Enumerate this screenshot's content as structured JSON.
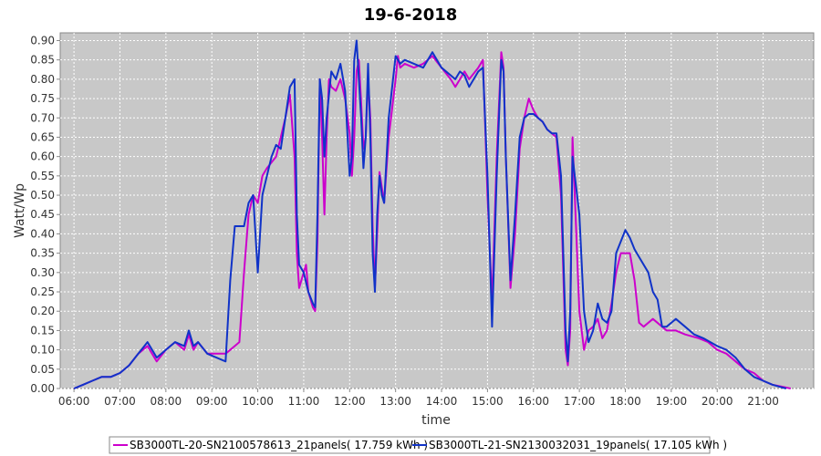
{
  "chart_data": {
    "type": "line",
    "title": "19-6-2018",
    "xlabel": "time",
    "ylabel": "Watt/Wp",
    "xlim": [
      5.7,
      22.1
    ],
    "ylim": [
      0,
      0.92
    ],
    "x_ticks": [
      "06:00",
      "07:00",
      "08:00",
      "09:00",
      "10:00",
      "11:00",
      "12:00",
      "13:00",
      "14:00",
      "15:00",
      "16:00",
      "17:00",
      "18:00",
      "19:00",
      "20:00",
      "21:00"
    ],
    "y_ticks": [
      "0.00",
      "0.05",
      "0.10",
      "0.15",
      "0.20",
      "0.25",
      "0.30",
      "0.35",
      "0.40",
      "0.45",
      "0.50",
      "0.55",
      "0.60",
      "0.65",
      "0.70",
      "0.75",
      "0.80",
      "0.85",
      "0.90"
    ],
    "grid": true,
    "legend": "bottom",
    "background": "#c8c8c8",
    "series": [
      {
        "name": "SB3000TL-20-SN2100578613_21panels( 17.759 kWh )",
        "color": "#cc00cc",
        "points": [
          [
            6.0,
            0.0
          ],
          [
            6.2,
            0.01
          ],
          [
            6.4,
            0.02
          ],
          [
            6.6,
            0.03
          ],
          [
            6.8,
            0.03
          ],
          [
            7.0,
            0.04
          ],
          [
            7.2,
            0.06
          ],
          [
            7.4,
            0.09
          ],
          [
            7.6,
            0.11
          ],
          [
            7.8,
            0.07
          ],
          [
            8.0,
            0.1
          ],
          [
            8.2,
            0.12
          ],
          [
            8.4,
            0.1
          ],
          [
            8.5,
            0.14
          ],
          [
            8.6,
            0.1
          ],
          [
            8.7,
            0.12
          ],
          [
            8.9,
            0.09
          ],
          [
            9.1,
            0.09
          ],
          [
            9.3,
            0.09
          ],
          [
            9.5,
            0.11
          ],
          [
            9.6,
            0.12
          ],
          [
            9.7,
            0.3
          ],
          [
            9.8,
            0.45
          ],
          [
            9.9,
            0.5
          ],
          [
            10.0,
            0.48
          ],
          [
            10.1,
            0.55
          ],
          [
            10.2,
            0.57
          ],
          [
            10.4,
            0.6
          ],
          [
            10.5,
            0.65
          ],
          [
            10.6,
            0.7
          ],
          [
            10.7,
            0.76
          ],
          [
            10.8,
            0.6
          ],
          [
            10.85,
            0.35
          ],
          [
            10.9,
            0.26
          ],
          [
            11.0,
            0.3
          ],
          [
            11.05,
            0.32
          ],
          [
            11.1,
            0.25
          ],
          [
            11.2,
            0.21
          ],
          [
            11.25,
            0.2
          ],
          [
            11.3,
            0.38
          ],
          [
            11.35,
            0.8
          ],
          [
            11.4,
            0.65
          ],
          [
            11.45,
            0.45
          ],
          [
            11.5,
            0.65
          ],
          [
            11.55,
            0.8
          ],
          [
            11.6,
            0.78
          ],
          [
            11.7,
            0.77
          ],
          [
            11.8,
            0.8
          ],
          [
            11.9,
            0.75
          ],
          [
            12.0,
            0.66
          ],
          [
            12.05,
            0.55
          ],
          [
            12.1,
            0.65
          ],
          [
            12.15,
            0.82
          ],
          [
            12.2,
            0.85
          ],
          [
            12.25,
            0.74
          ],
          [
            12.3,
            0.62
          ],
          [
            12.35,
            0.65
          ],
          [
            12.4,
            0.8
          ],
          [
            12.45,
            0.7
          ],
          [
            12.5,
            0.42
          ],
          [
            12.55,
            0.26
          ],
          [
            12.6,
            0.4
          ],
          [
            12.65,
            0.56
          ],
          [
            12.7,
            0.52
          ],
          [
            12.75,
            0.48
          ],
          [
            12.85,
            0.65
          ],
          [
            13.0,
            0.8
          ],
          [
            13.05,
            0.86
          ],
          [
            13.1,
            0.83
          ],
          [
            13.2,
            0.84
          ],
          [
            13.4,
            0.83
          ],
          [
            13.6,
            0.84
          ],
          [
            13.8,
            0.86
          ],
          [
            14.0,
            0.83
          ],
          [
            14.2,
            0.8
          ],
          [
            14.3,
            0.78
          ],
          [
            14.4,
            0.8
          ],
          [
            14.5,
            0.82
          ],
          [
            14.6,
            0.8
          ],
          [
            14.8,
            0.83
          ],
          [
            14.9,
            0.85
          ],
          [
            15.0,
            0.5
          ],
          [
            15.1,
            0.22
          ],
          [
            15.2,
            0.6
          ],
          [
            15.3,
            0.87
          ],
          [
            15.35,
            0.83
          ],
          [
            15.4,
            0.6
          ],
          [
            15.5,
            0.26
          ],
          [
            15.6,
            0.4
          ],
          [
            15.7,
            0.62
          ],
          [
            15.8,
            0.7
          ],
          [
            15.9,
            0.75
          ],
          [
            16.0,
            0.72
          ],
          [
            16.1,
            0.7
          ],
          [
            16.2,
            0.69
          ],
          [
            16.3,
            0.67
          ],
          [
            16.4,
            0.66
          ],
          [
            16.5,
            0.65
          ],
          [
            16.6,
            0.5
          ],
          [
            16.7,
            0.1
          ],
          [
            16.75,
            0.06
          ],
          [
            16.8,
            0.15
          ],
          [
            16.85,
            0.65
          ],
          [
            16.9,
            0.5
          ],
          [
            17.0,
            0.2
          ],
          [
            17.1,
            0.1
          ],
          [
            17.2,
            0.15
          ],
          [
            17.3,
            0.16
          ],
          [
            17.4,
            0.18
          ],
          [
            17.5,
            0.13
          ],
          [
            17.6,
            0.15
          ],
          [
            17.7,
            0.22
          ],
          [
            17.8,
            0.3
          ],
          [
            17.9,
            0.35
          ],
          [
            18.1,
            0.35
          ],
          [
            18.2,
            0.28
          ],
          [
            18.3,
            0.17
          ],
          [
            18.4,
            0.16
          ],
          [
            18.6,
            0.18
          ],
          [
            18.8,
            0.16
          ],
          [
            18.9,
            0.15
          ],
          [
            19.1,
            0.15
          ],
          [
            19.3,
            0.14
          ],
          [
            19.6,
            0.13
          ],
          [
            19.8,
            0.12
          ],
          [
            20.0,
            0.1
          ],
          [
            20.2,
            0.09
          ],
          [
            20.4,
            0.07
          ],
          [
            20.6,
            0.05
          ],
          [
            20.8,
            0.04
          ],
          [
            21.0,
            0.02
          ],
          [
            21.2,
            0.01
          ],
          [
            21.4,
            0.005
          ],
          [
            21.6,
            0.0
          ]
        ]
      },
      {
        "name": "SB3000TL-21-SN2130032031_19panels( 17.105 kWh )",
        "color": "#1033c8",
        "points": [
          [
            6.0,
            0.0
          ],
          [
            6.2,
            0.01
          ],
          [
            6.4,
            0.02
          ],
          [
            6.6,
            0.03
          ],
          [
            6.8,
            0.03
          ],
          [
            7.0,
            0.04
          ],
          [
            7.2,
            0.06
          ],
          [
            7.4,
            0.09
          ],
          [
            7.6,
            0.12
          ],
          [
            7.8,
            0.08
          ],
          [
            8.0,
            0.1
          ],
          [
            8.2,
            0.12
          ],
          [
            8.4,
            0.11
          ],
          [
            8.5,
            0.15
          ],
          [
            8.6,
            0.11
          ],
          [
            8.7,
            0.12
          ],
          [
            8.9,
            0.09
          ],
          [
            9.1,
            0.08
          ],
          [
            9.3,
            0.07
          ],
          [
            9.4,
            0.28
          ],
          [
            9.5,
            0.42
          ],
          [
            9.7,
            0.42
          ],
          [
            9.8,
            0.48
          ],
          [
            9.9,
            0.5
          ],
          [
            10.0,
            0.3
          ],
          [
            10.1,
            0.5
          ],
          [
            10.2,
            0.55
          ],
          [
            10.3,
            0.6
          ],
          [
            10.4,
            0.63
          ],
          [
            10.5,
            0.62
          ],
          [
            10.6,
            0.7
          ],
          [
            10.7,
            0.78
          ],
          [
            10.8,
            0.8
          ],
          [
            10.85,
            0.45
          ],
          [
            10.9,
            0.32
          ],
          [
            11.0,
            0.3
          ],
          [
            11.1,
            0.25
          ],
          [
            11.2,
            0.22
          ],
          [
            11.25,
            0.21
          ],
          [
            11.3,
            0.45
          ],
          [
            11.35,
            0.8
          ],
          [
            11.4,
            0.75
          ],
          [
            11.45,
            0.6
          ],
          [
            11.5,
            0.7
          ],
          [
            11.6,
            0.82
          ],
          [
            11.7,
            0.8
          ],
          [
            11.8,
            0.84
          ],
          [
            11.9,
            0.77
          ],
          [
            12.0,
            0.55
          ],
          [
            12.05,
            0.6
          ],
          [
            12.1,
            0.85
          ],
          [
            12.15,
            0.9
          ],
          [
            12.2,
            0.8
          ],
          [
            12.25,
            0.7
          ],
          [
            12.3,
            0.57
          ],
          [
            12.35,
            0.65
          ],
          [
            12.4,
            0.84
          ],
          [
            12.45,
            0.65
          ],
          [
            12.5,
            0.35
          ],
          [
            12.55,
            0.25
          ],
          [
            12.6,
            0.45
          ],
          [
            12.65,
            0.55
          ],
          [
            12.7,
            0.5
          ],
          [
            12.75,
            0.48
          ],
          [
            12.85,
            0.7
          ],
          [
            13.0,
            0.86
          ],
          [
            13.1,
            0.84
          ],
          [
            13.2,
            0.85
          ],
          [
            13.4,
            0.84
          ],
          [
            13.6,
            0.83
          ],
          [
            13.8,
            0.87
          ],
          [
            14.0,
            0.83
          ],
          [
            14.2,
            0.81
          ],
          [
            14.3,
            0.8
          ],
          [
            14.4,
            0.82
          ],
          [
            14.5,
            0.81
          ],
          [
            14.6,
            0.78
          ],
          [
            14.8,
            0.82
          ],
          [
            14.9,
            0.83
          ],
          [
            15.0,
            0.55
          ],
          [
            15.1,
            0.16
          ],
          [
            15.2,
            0.55
          ],
          [
            15.3,
            0.85
          ],
          [
            15.35,
            0.82
          ],
          [
            15.4,
            0.6
          ],
          [
            15.5,
            0.28
          ],
          [
            15.6,
            0.45
          ],
          [
            15.7,
            0.65
          ],
          [
            15.8,
            0.7
          ],
          [
            15.9,
            0.71
          ],
          [
            16.0,
            0.71
          ],
          [
            16.1,
            0.7
          ],
          [
            16.2,
            0.69
          ],
          [
            16.3,
            0.67
          ],
          [
            16.4,
            0.66
          ],
          [
            16.5,
            0.66
          ],
          [
            16.6,
            0.55
          ],
          [
            16.7,
            0.15
          ],
          [
            16.75,
            0.07
          ],
          [
            16.8,
            0.2
          ],
          [
            16.85,
            0.6
          ],
          [
            16.9,
            0.55
          ],
          [
            17.0,
            0.45
          ],
          [
            17.1,
            0.2
          ],
          [
            17.2,
            0.12
          ],
          [
            17.3,
            0.15
          ],
          [
            17.4,
            0.22
          ],
          [
            17.5,
            0.18
          ],
          [
            17.6,
            0.17
          ],
          [
            17.7,
            0.2
          ],
          [
            17.8,
            0.35
          ],
          [
            17.9,
            0.38
          ],
          [
            18.0,
            0.41
          ],
          [
            18.1,
            0.39
          ],
          [
            18.2,
            0.36
          ],
          [
            18.3,
            0.34
          ],
          [
            18.5,
            0.3
          ],
          [
            18.6,
            0.25
          ],
          [
            18.7,
            0.23
          ],
          [
            18.8,
            0.16
          ],
          [
            18.9,
            0.16
          ],
          [
            19.0,
            0.17
          ],
          [
            19.1,
            0.18
          ],
          [
            19.3,
            0.16
          ],
          [
            19.5,
            0.14
          ],
          [
            19.7,
            0.13
          ],
          [
            20.0,
            0.11
          ],
          [
            20.2,
            0.1
          ],
          [
            20.4,
            0.08
          ],
          [
            20.6,
            0.05
          ],
          [
            20.8,
            0.03
          ],
          [
            21.0,
            0.02
          ],
          [
            21.2,
            0.01
          ],
          [
            21.4,
            0.003
          ],
          [
            21.5,
            0.0
          ]
        ]
      }
    ]
  }
}
